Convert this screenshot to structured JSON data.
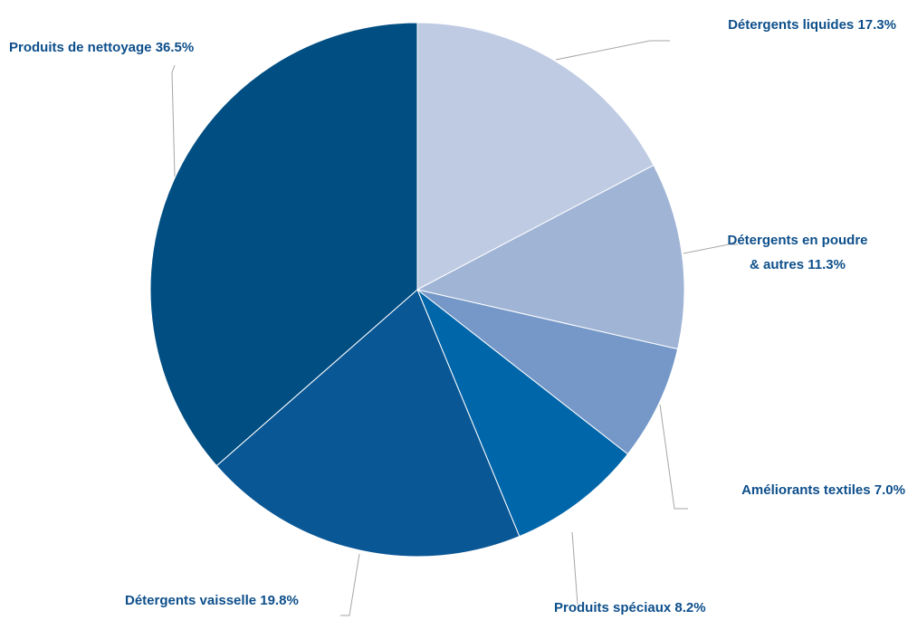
{
  "chart_data": {
    "type": "pie",
    "categories": [
      "Détergents liquides",
      "Détergents en poudre & autres",
      "Améliorants textiles",
      "Produits spéciaux",
      "Détergents vaisselle",
      "Produits de nettoyage"
    ],
    "values": [
      17.3,
      11.3,
      7.0,
      8.2,
      19.8,
      36.5
    ],
    "value_labels": [
      "17.3%",
      "11.3%",
      "7.0%",
      "8.2%",
      "19.8%",
      "36.5%"
    ],
    "colors": [
      "#bfcbe3",
      "#a0b4d6",
      "#7598c8",
      "#0066aa",
      "#0a5796",
      "#004e82"
    ]
  }
}
